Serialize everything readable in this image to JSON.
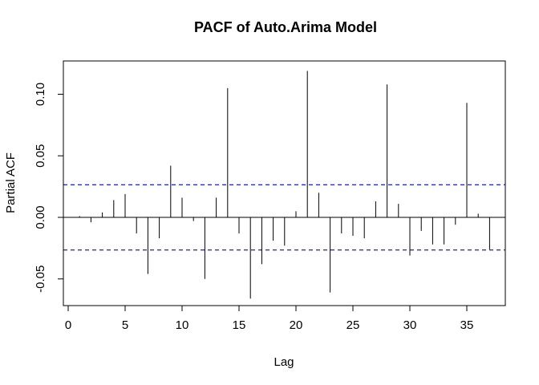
{
  "chart_data": {
    "type": "bar",
    "subtype": "pacf-spike",
    "title": "PACF of Auto.Arima Model",
    "xlabel": "Lag",
    "ylabel": "Partial ACF",
    "xlim": [
      0,
      38
    ],
    "ylim": [
      -0.07,
      0.12
    ],
    "xticks": [
      0,
      5,
      10,
      15,
      20,
      25,
      30,
      35
    ],
    "yticks": [
      -0.05,
      0.0,
      0.05,
      0.1
    ],
    "ytick_labels": [
      "-0.05",
      "0.00",
      "0.05",
      "0.10"
    ],
    "confidence_band": 0.0265,
    "lags": [
      1,
      2,
      3,
      4,
      5,
      6,
      7,
      8,
      9,
      10,
      11,
      12,
      13,
      14,
      15,
      16,
      17,
      18,
      19,
      20,
      21,
      22,
      23,
      24,
      25,
      26,
      27,
      28,
      29,
      30,
      31,
      32,
      33,
      34,
      35,
      36,
      37
    ],
    "values": [
      0.001,
      -0.004,
      0.004,
      0.014,
      0.019,
      -0.013,
      -0.046,
      -0.017,
      0.042,
      0.016,
      -0.003,
      -0.05,
      0.016,
      0.105,
      -0.013,
      -0.066,
      -0.038,
      -0.019,
      -0.023,
      0.005,
      0.119,
      0.02,
      -0.061,
      -0.013,
      -0.015,
      -0.017,
      0.013,
      0.108,
      0.011,
      -0.031,
      -0.011,
      -0.022,
      -0.022,
      -0.006,
      0.093,
      0.003,
      -0.026
    ],
    "colors": {
      "spike": "#000000",
      "band": "#0000ff",
      "zero": "#000000",
      "frame": "#000000"
    },
    "grid": false,
    "legend": "none"
  }
}
